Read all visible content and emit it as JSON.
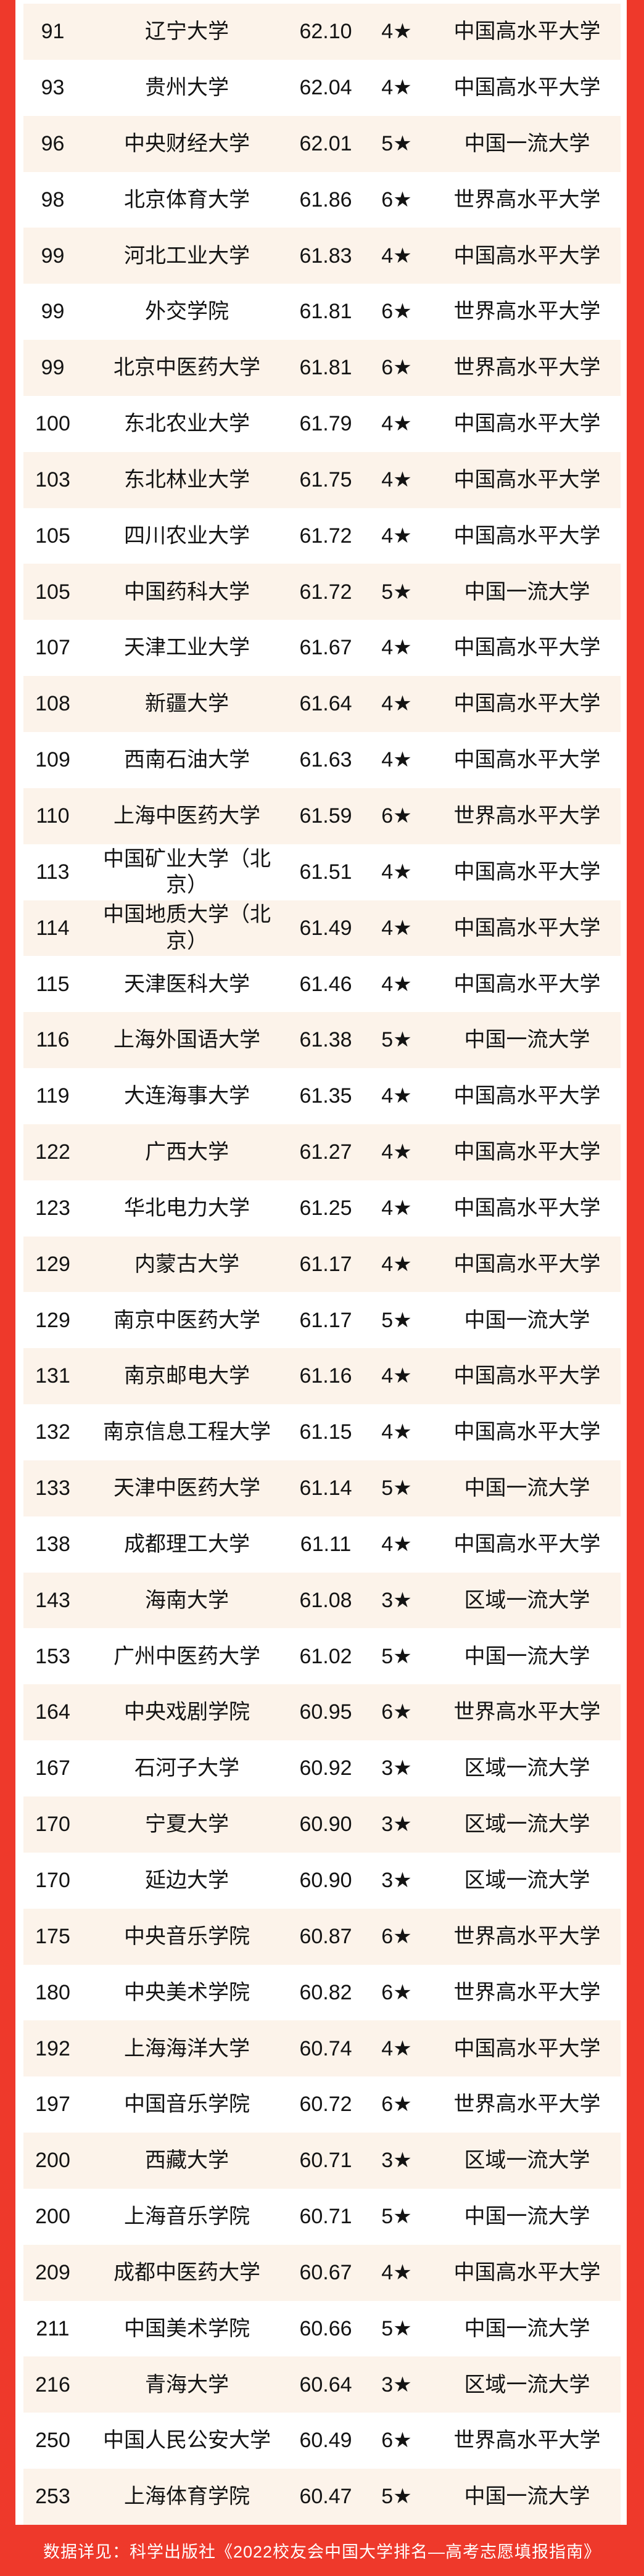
{
  "colors": {
    "accent_red": "#ee392b",
    "row_alt_bg": "#fcf3ea",
    "row_bg": "#ffffff",
    "text": "#131313",
    "footer_text": "#ffffff"
  },
  "table": {
    "rows": [
      {
        "rank": "91",
        "name": "辽宁大学",
        "score": "62.10",
        "stars": "4★",
        "tier": "中国高水平大学"
      },
      {
        "rank": "93",
        "name": "贵州大学",
        "score": "62.04",
        "stars": "4★",
        "tier": "中国高水平大学"
      },
      {
        "rank": "96",
        "name": "中央财经大学",
        "score": "62.01",
        "stars": "5★",
        "tier": "中国一流大学"
      },
      {
        "rank": "98",
        "name": "北京体育大学",
        "score": "61.86",
        "stars": "6★",
        "tier": "世界高水平大学"
      },
      {
        "rank": "99",
        "name": "河北工业大学",
        "score": "61.83",
        "stars": "4★",
        "tier": "中国高水平大学"
      },
      {
        "rank": "99",
        "name": "外交学院",
        "score": "61.81",
        "stars": "6★",
        "tier": "世界高水平大学"
      },
      {
        "rank": "99",
        "name": "北京中医药大学",
        "score": "61.81",
        "stars": "6★",
        "tier": "世界高水平大学"
      },
      {
        "rank": "100",
        "name": "东北农业大学",
        "score": "61.79",
        "stars": "4★",
        "tier": "中国高水平大学"
      },
      {
        "rank": "103",
        "name": "东北林业大学",
        "score": "61.75",
        "stars": "4★",
        "tier": "中国高水平大学"
      },
      {
        "rank": "105",
        "name": "四川农业大学",
        "score": "61.72",
        "stars": "4★",
        "tier": "中国高水平大学"
      },
      {
        "rank": "105",
        "name": "中国药科大学",
        "score": "61.72",
        "stars": "5★",
        "tier": "中国一流大学"
      },
      {
        "rank": "107",
        "name": "天津工业大学",
        "score": "61.67",
        "stars": "4★",
        "tier": "中国高水平大学"
      },
      {
        "rank": "108",
        "name": "新疆大学",
        "score": "61.64",
        "stars": "4★",
        "tier": "中国高水平大学"
      },
      {
        "rank": "109",
        "name": "西南石油大学",
        "score": "61.63",
        "stars": "4★",
        "tier": "中国高水平大学"
      },
      {
        "rank": "110",
        "name": "上海中医药大学",
        "score": "61.59",
        "stars": "6★",
        "tier": "世界高水平大学"
      },
      {
        "rank": "113",
        "name": "中国矿业大学（北京）",
        "score": "61.51",
        "stars": "4★",
        "tier": "中国高水平大学"
      },
      {
        "rank": "114",
        "name": "中国地质大学（北京）",
        "score": "61.49",
        "stars": "4★",
        "tier": "中国高水平大学"
      },
      {
        "rank": "115",
        "name": "天津医科大学",
        "score": "61.46",
        "stars": "4★",
        "tier": "中国高水平大学"
      },
      {
        "rank": "116",
        "name": "上海外国语大学",
        "score": "61.38",
        "stars": "5★",
        "tier": "中国一流大学"
      },
      {
        "rank": "119",
        "name": "大连海事大学",
        "score": "61.35",
        "stars": "4★",
        "tier": "中国高水平大学"
      },
      {
        "rank": "122",
        "name": "广西大学",
        "score": "61.27",
        "stars": "4★",
        "tier": "中国高水平大学"
      },
      {
        "rank": "123",
        "name": "华北电力大学",
        "score": "61.25",
        "stars": "4★",
        "tier": "中国高水平大学"
      },
      {
        "rank": "129",
        "name": "内蒙古大学",
        "score": "61.17",
        "stars": "4★",
        "tier": "中国高水平大学"
      },
      {
        "rank": "129",
        "name": "南京中医药大学",
        "score": "61.17",
        "stars": "5★",
        "tier": "中国一流大学"
      },
      {
        "rank": "131",
        "name": "南京邮电大学",
        "score": "61.16",
        "stars": "4★",
        "tier": "中国高水平大学"
      },
      {
        "rank": "132",
        "name": "南京信息工程大学",
        "score": "61.15",
        "stars": "4★",
        "tier": "中国高水平大学"
      },
      {
        "rank": "133",
        "name": "天津中医药大学",
        "score": "61.14",
        "stars": "5★",
        "tier": "中国一流大学"
      },
      {
        "rank": "138",
        "name": "成都理工大学",
        "score": "61.11",
        "stars": "4★",
        "tier": "中国高水平大学"
      },
      {
        "rank": "143",
        "name": "海南大学",
        "score": "61.08",
        "stars": "3★",
        "tier": "区域一流大学"
      },
      {
        "rank": "153",
        "name": "广州中医药大学",
        "score": "61.02",
        "stars": "5★",
        "tier": "中国一流大学"
      },
      {
        "rank": "164",
        "name": "中央戏剧学院",
        "score": "60.95",
        "stars": "6★",
        "tier": "世界高水平大学"
      },
      {
        "rank": "167",
        "name": "石河子大学",
        "score": "60.92",
        "stars": "3★",
        "tier": "区域一流大学"
      },
      {
        "rank": "170",
        "name": "宁夏大学",
        "score": "60.90",
        "stars": "3★",
        "tier": "区域一流大学"
      },
      {
        "rank": "170",
        "name": "延边大学",
        "score": "60.90",
        "stars": "3★",
        "tier": "区域一流大学"
      },
      {
        "rank": "175",
        "name": "中央音乐学院",
        "score": "60.87",
        "stars": "6★",
        "tier": "世界高水平大学"
      },
      {
        "rank": "180",
        "name": "中央美术学院",
        "score": "60.82",
        "stars": "6★",
        "tier": "世界高水平大学"
      },
      {
        "rank": "192",
        "name": "上海海洋大学",
        "score": "60.74",
        "stars": "4★",
        "tier": "中国高水平大学"
      },
      {
        "rank": "197",
        "name": "中国音乐学院",
        "score": "60.72",
        "stars": "6★",
        "tier": "世界高水平大学"
      },
      {
        "rank": "200",
        "name": "西藏大学",
        "score": "60.71",
        "stars": "3★",
        "tier": "区域一流大学"
      },
      {
        "rank": "200",
        "name": "上海音乐学院",
        "score": "60.71",
        "stars": "5★",
        "tier": "中国一流大学"
      },
      {
        "rank": "209",
        "name": "成都中医药大学",
        "score": "60.67",
        "stars": "4★",
        "tier": "中国高水平大学"
      },
      {
        "rank": "211",
        "name": "中国美术学院",
        "score": "60.66",
        "stars": "5★",
        "tier": "中国一流大学"
      },
      {
        "rank": "216",
        "name": "青海大学",
        "score": "60.64",
        "stars": "3★",
        "tier": "区域一流大学"
      },
      {
        "rank": "250",
        "name": "中国人民公安大学",
        "score": "60.49",
        "stars": "6★",
        "tier": "世界高水平大学"
      },
      {
        "rank": "253",
        "name": "上海体育学院",
        "score": "60.47",
        "stars": "5★",
        "tier": "中国一流大学"
      }
    ]
  },
  "footer": {
    "text": "数据详见：科学出版社《2022校友会中国大学排名—高考志愿填报指南》"
  }
}
